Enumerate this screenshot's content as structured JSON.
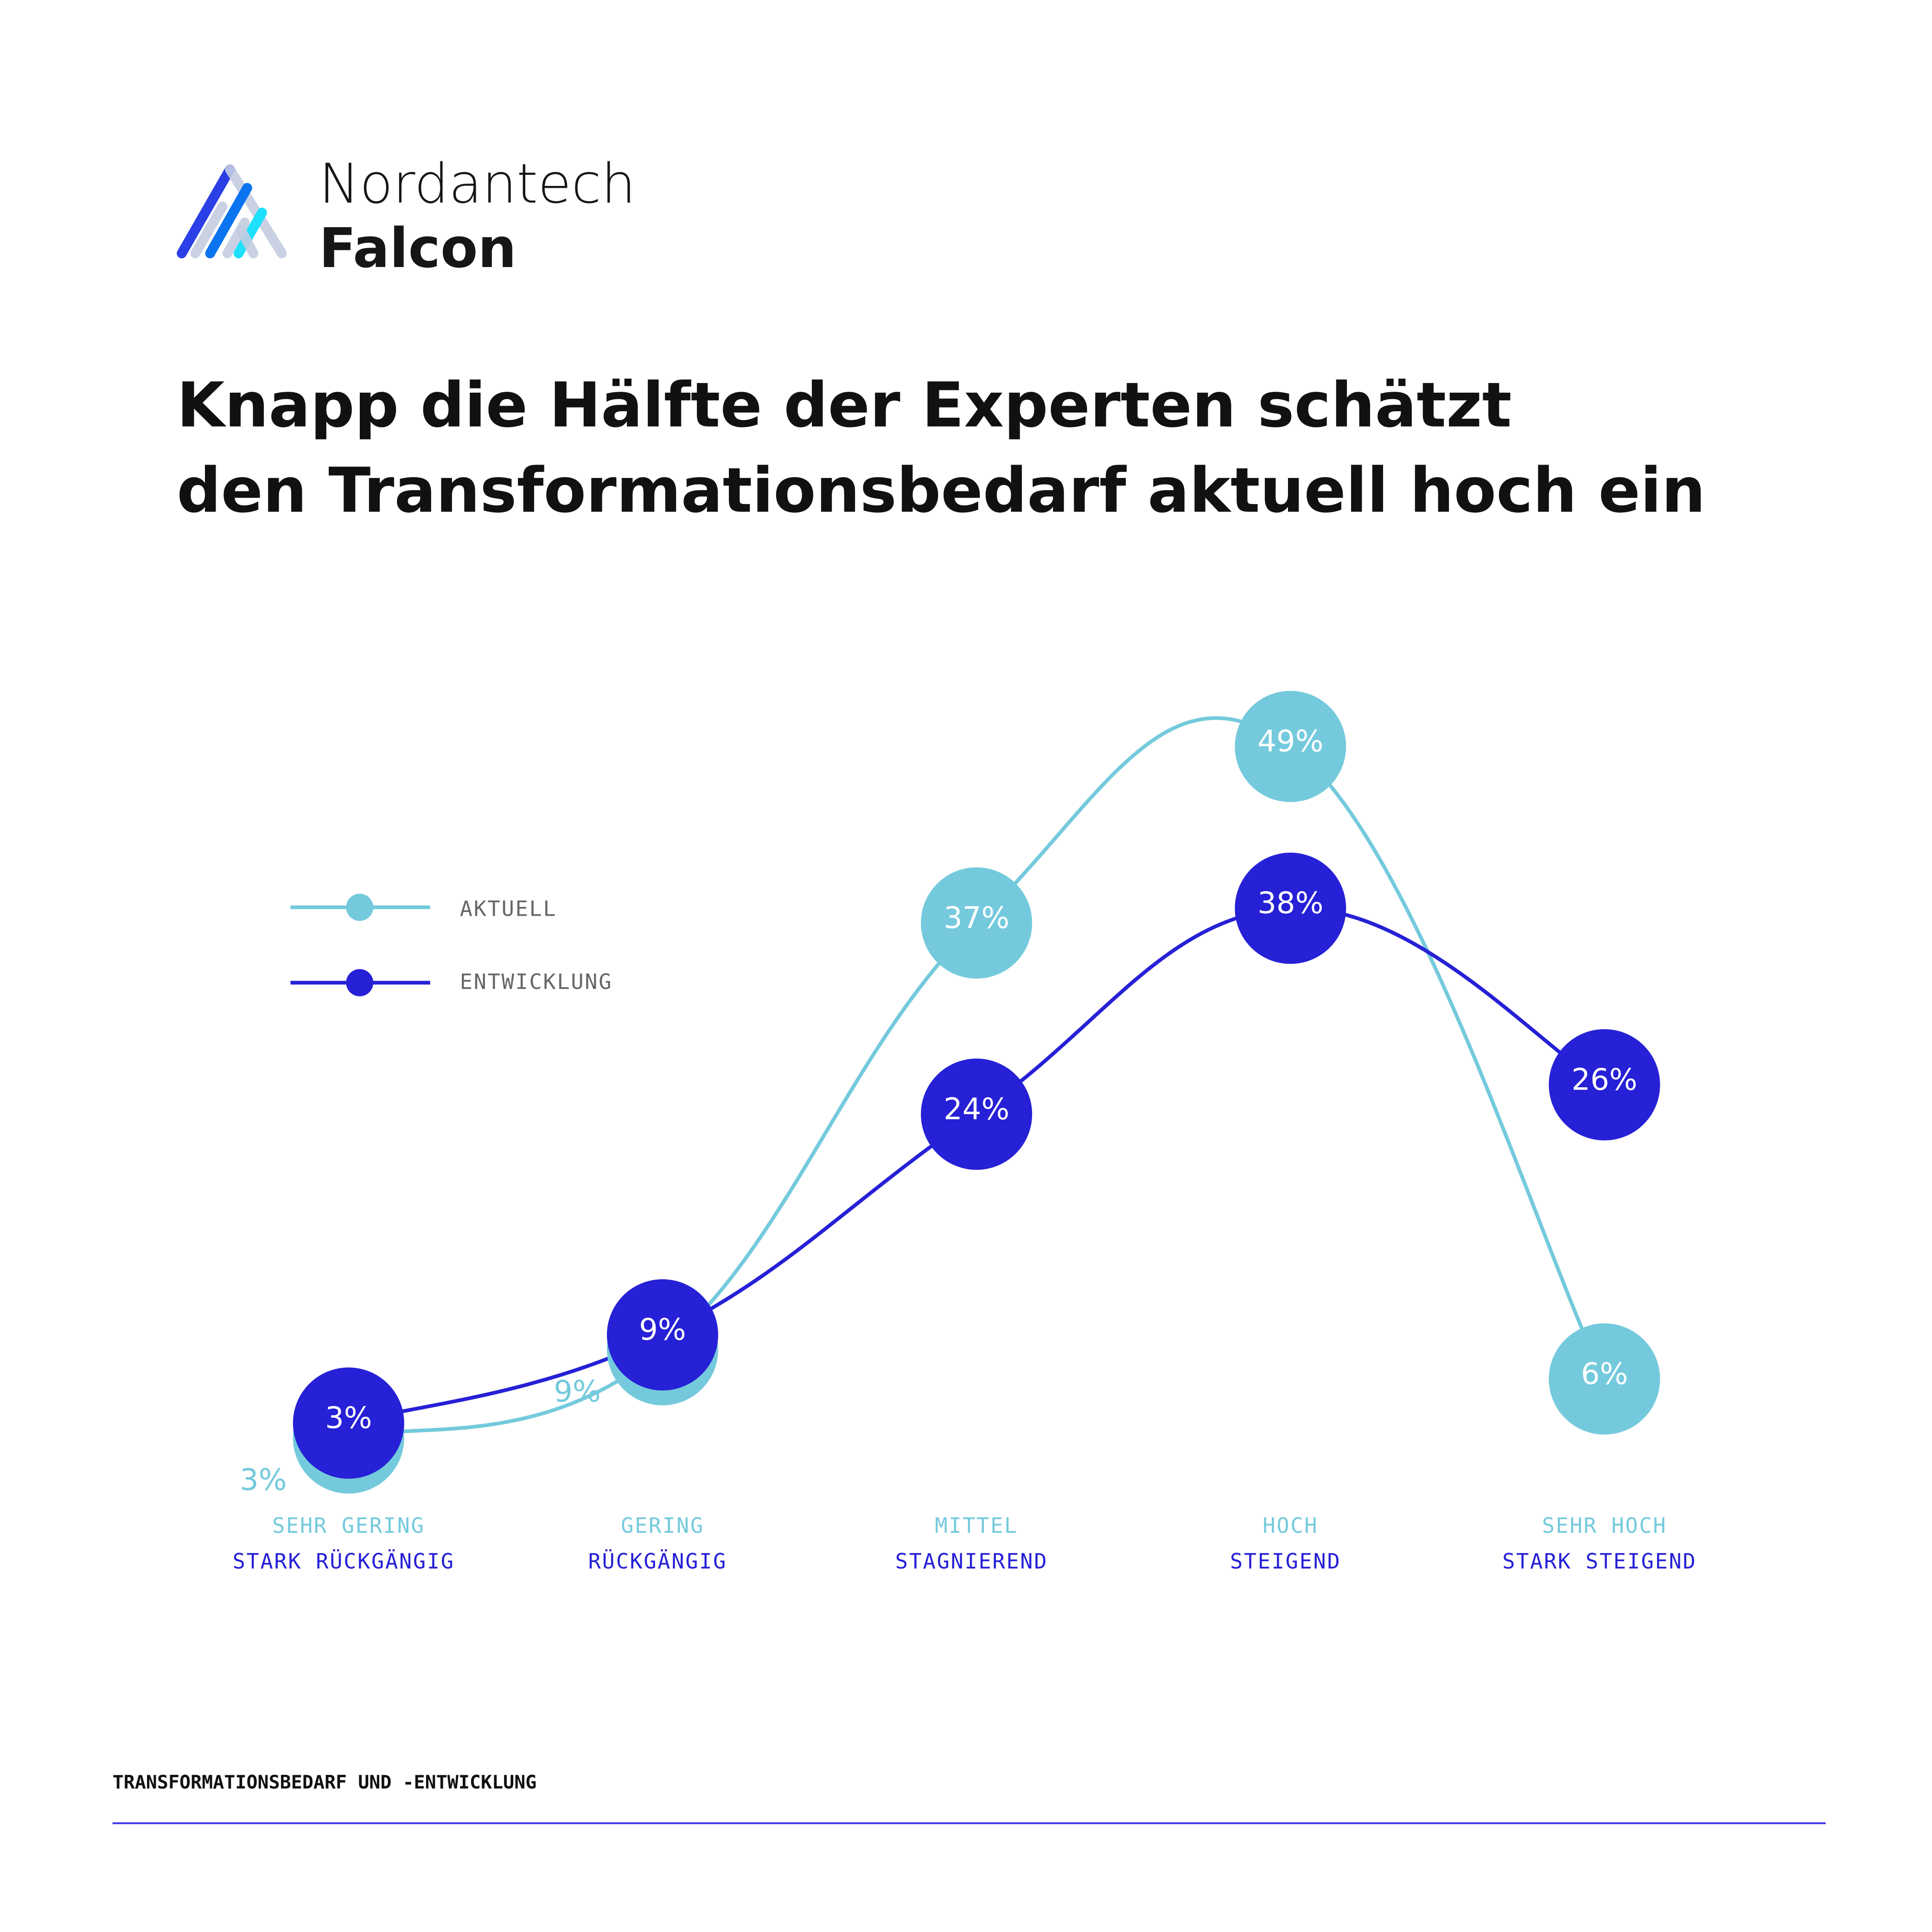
{
  "brand": {
    "line1": "Nordantech",
    "line2": "Falcon"
  },
  "headline": {
    "line1": "Knapp die Hälfte der Experten schätzt",
    "line2": "den Transformationsbedarf aktuell hoch ein"
  },
  "footer": {
    "label": "TRANSFORMATIONSBEDARF UND -ENTWICKLUNG"
  },
  "colors": {
    "aktuell": "#74CADC",
    "entwicklung": "#2620D6",
    "footer_line": "#3B36E8"
  },
  "chart_data": {
    "type": "line",
    "title": "Knapp die Hälfte der Experten schätzt den Transformationsbedarf aktuell hoch ein",
    "legend_position": "left",
    "categories": [
      {
        "top": "SEHR GERING",
        "bottom": "STARK RÜCKGÄNGIG"
      },
      {
        "top": "GERING",
        "bottom": "RÜCKGÄNGIG"
      },
      {
        "top": "MITTEL",
        "bottom": "STAGNIEREND"
      },
      {
        "top": "HOCH",
        "bottom": "STEIGEND"
      },
      {
        "top": "SEHR HOCH",
        "bottom": "STARK STEIGEND"
      }
    ],
    "series": [
      {
        "name": "AKTUELL",
        "values": [
          3,
          9,
          37,
          49,
          6
        ],
        "labels": [
          "3%",
          "9%",
          "37%",
          "49%",
          "6%"
        ]
      },
      {
        "name": "ENTWICKLUNG",
        "values": [
          3,
          9,
          24,
          38,
          26
        ],
        "labels": [
          "3%",
          "9%",
          "24%",
          "38%",
          "26%"
        ]
      }
    ],
    "ylim": [
      0,
      50
    ],
    "grid": false
  }
}
